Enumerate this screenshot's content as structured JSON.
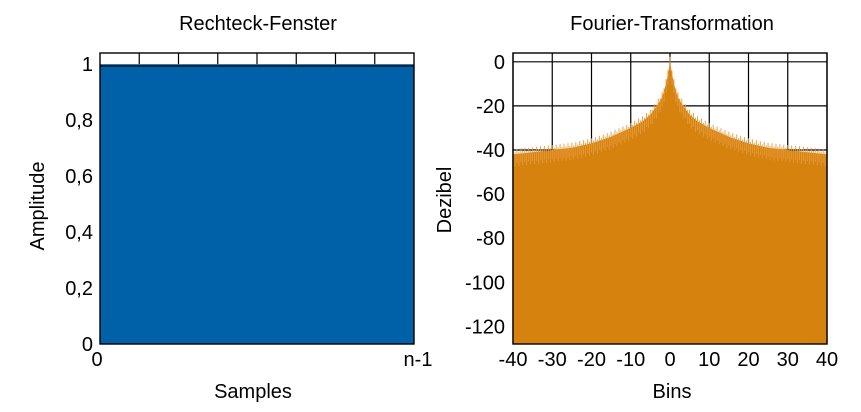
{
  "chart_data": [
    {
      "type": "area",
      "title": "Rechteck-Fenster",
      "xlabel": "Samples",
      "ylabel": "Amplitude",
      "x_tick_labels": [
        "0",
        "n-1"
      ],
      "y_ticks": [
        0,
        0.2,
        0.4,
        0.6,
        0.8,
        1
      ],
      "y_tick_labels": [
        "0",
        "0,2",
        "0,4",
        "0,6",
        "0,8",
        "1"
      ],
      "ylim": [
        0,
        1.04
      ],
      "x": [
        0,
        1
      ],
      "values": [
        1,
        1
      ],
      "fill_color": "#0060a8",
      "grid": false,
      "top_band_vertical_grid": true
    },
    {
      "type": "area",
      "title": "Fourier-Transformation",
      "xlabel": "Bins",
      "ylabel": "Dezibel",
      "xlim": [
        -40,
        40
      ],
      "ylim": [
        -128,
        4
      ],
      "x_ticks": [
        -40,
        -30,
        -20,
        -10,
        0,
        10,
        20,
        30,
        40
      ],
      "x_tick_labels": [
        "-40",
        "-30",
        "-20",
        "-10",
        "0",
        "10",
        "20",
        "30",
        "40"
      ],
      "y_ticks": [
        0,
        -20,
        -40,
        -60,
        -80,
        -100,
        -120
      ],
      "y_tick_labels": [
        "0",
        "-20",
        "-40",
        "-60",
        "-80",
        "-100",
        "-120"
      ],
      "series": [
        {
          "x": [
            -40,
            -35,
            -30,
            -25,
            -20,
            -15,
            -10,
            -7,
            -5,
            -3,
            -2,
            -1,
            0,
            1,
            2,
            3,
            5,
            7,
            10,
            15,
            20,
            25,
            30,
            35,
            40
          ],
          "values": [
            -42,
            -41,
            -40,
            -39,
            -37,
            -34,
            -30,
            -27,
            -24,
            -19,
            -16,
            -10,
            0,
            -10,
            -16,
            -19,
            -24,
            -27,
            -30,
            -34,
            -37,
            -39,
            -40,
            -41,
            -42
          ]
        }
      ],
      "fill_color": "#d6820f",
      "grid": true
    }
  ]
}
